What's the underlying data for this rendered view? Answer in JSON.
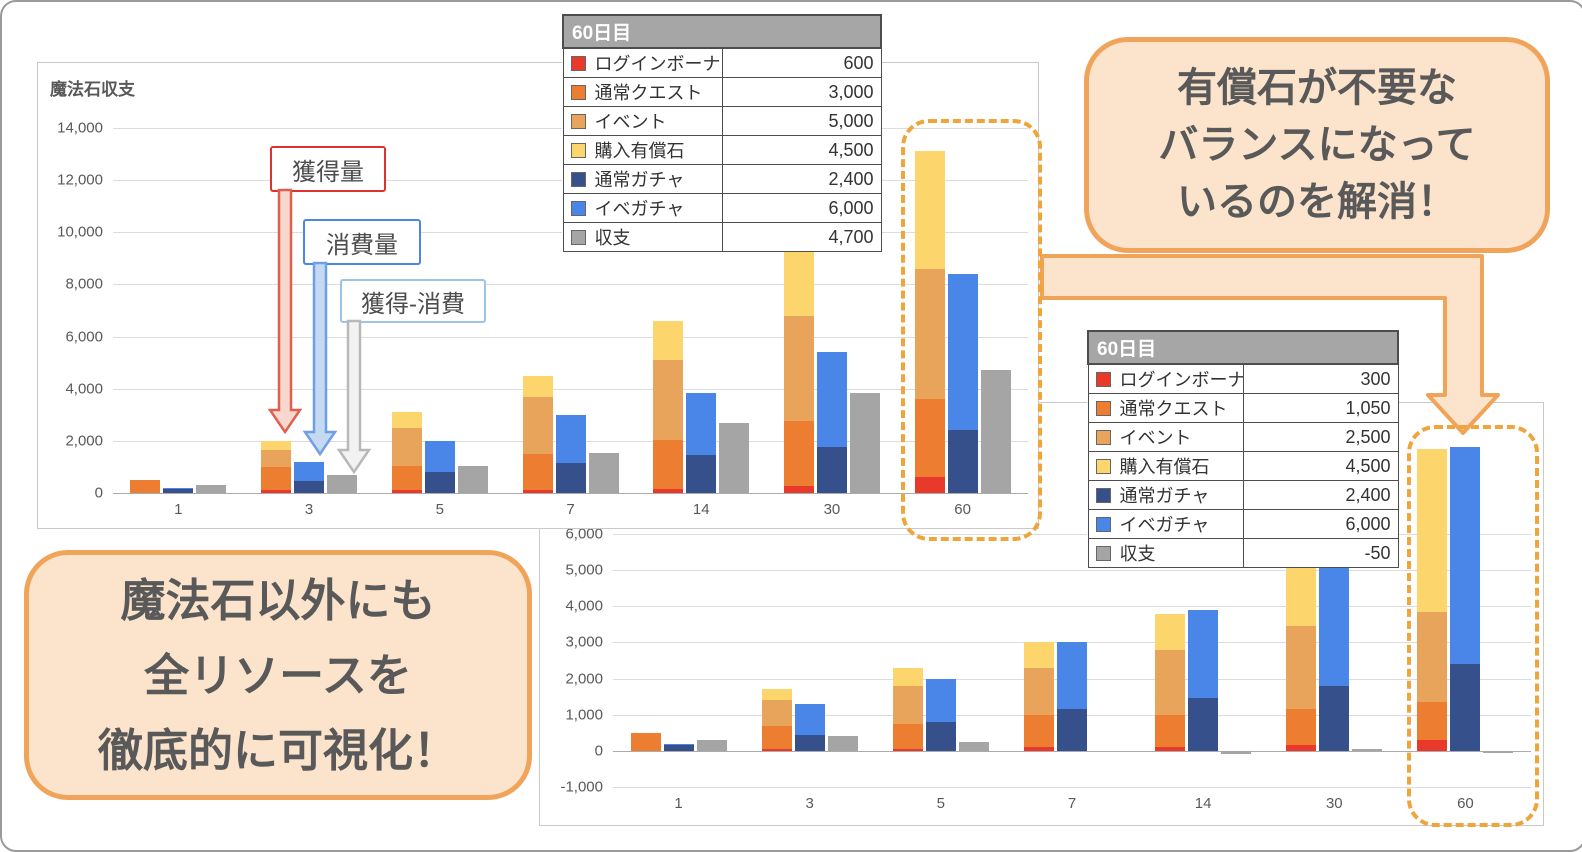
{
  "colors": {
    "login_bonus": "#e8392b",
    "normal_quest": "#ed7d31",
    "event": "#e9a45c",
    "paid_stone": "#fcd56c",
    "normal_gacha": "#36508c",
    "event_gacha": "#4a86e8",
    "balance": "#a5a5a5",
    "bubble_bg": "#fbe3cc",
    "bubble_border": "#f0a45a",
    "dash_border": "#f0a43c",
    "annotation_red": "#e03131",
    "annotation_blue": "#4a86e8",
    "annotation_lightblue": "#9dc3e6",
    "legend_header_bg": "#a6a6a6"
  },
  "legend1": {
    "header": "60日目",
    "rows": [
      {
        "label": "ログインボーナス",
        "value": "600",
        "color_key": "login_bonus"
      },
      {
        "label": "通常クエスト",
        "value": "3,000",
        "color_key": "normal_quest"
      },
      {
        "label": "イベント",
        "value": "5,000",
        "color_key": "event"
      },
      {
        "label": "購入有償石",
        "value": "4,500",
        "color_key": "paid_stone"
      },
      {
        "label": "通常ガチャ",
        "value": "2,400",
        "color_key": "normal_gacha"
      },
      {
        "label": "イベガチャ",
        "value": "6,000",
        "color_key": "event_gacha"
      },
      {
        "label": "収支",
        "value": "4,700",
        "color_key": "balance"
      }
    ]
  },
  "legend2": {
    "header": "60日目",
    "rows": [
      {
        "label": "ログインボーナス",
        "value": "300",
        "color_key": "login_bonus"
      },
      {
        "label": "通常クエスト",
        "value": "1,050",
        "color_key": "normal_quest"
      },
      {
        "label": "イベント",
        "value": "2,500",
        "color_key": "event"
      },
      {
        "label": "購入有償石",
        "value": "4,500",
        "color_key": "paid_stone"
      },
      {
        "label": "通常ガチャ",
        "value": "2,400",
        "color_key": "normal_gacha"
      },
      {
        "label": "イベガチャ",
        "value": "6,000",
        "color_key": "event_gacha"
      },
      {
        "label": "収支",
        "value": "-50",
        "color_key": "balance"
      }
    ]
  },
  "bubble1": {
    "lines": [
      "有償石が不要な",
      "バランスになって",
      "いるのを解消！"
    ]
  },
  "bubble2": {
    "lines": [
      "魔法石以外にも",
      "全リソースを",
      "徹底的に可視化！"
    ]
  },
  "annotations": [
    {
      "text": "獲得量"
    },
    {
      "text": "消費量"
    },
    {
      "text": "獲得-消費"
    }
  ],
  "chart_data": [
    {
      "type": "bar",
      "subtype": "grouped-stacked",
      "title": "魔法石収支",
      "categories": [
        "1",
        "3",
        "5",
        "7",
        "14",
        "30",
        "60"
      ],
      "xlabel": "",
      "ylabel": "",
      "ylim": [
        0,
        14000
      ],
      "ytick_step": 2000,
      "grid": true,
      "legend_position": "separate-table",
      "groups": [
        {
          "name": "獲得量",
          "series": [
            {
              "name": "ログインボーナス",
              "color_key": "login_bonus",
              "values": [
                0,
                100,
                100,
                100,
                150,
                250,
                600
              ]
            },
            {
              "name": "通常クエスト",
              "color_key": "normal_quest",
              "values": [
                500,
                900,
                950,
                1400,
                1900,
                2500,
                3000
              ]
            },
            {
              "name": "イベント",
              "color_key": "event",
              "values": [
                0,
                650,
                1450,
                2200,
                3050,
                4050,
                5000
              ]
            },
            {
              "name": "購入有償石",
              "color_key": "paid_stone",
              "values": [
                0,
                350,
                600,
                800,
                1500,
                2500,
                4500
              ]
            }
          ]
        },
        {
          "name": "消費量",
          "series": [
            {
              "name": "通常ガチャ",
              "color_key": "normal_gacha",
              "values": [
                150,
                450,
                800,
                1150,
                1450,
                1750,
                2400
              ]
            },
            {
              "name": "イベガチャ",
              "color_key": "event_gacha",
              "values": [
                50,
                750,
                1200,
                1850,
                2400,
                3650,
                6000
              ]
            }
          ]
        },
        {
          "name": "獲得-消費",
          "series": [
            {
              "name": "収支",
              "color_key": "balance",
              "values": [
                300,
                700,
                1050,
                1550,
                2700,
                3850,
                4700
              ]
            }
          ]
        }
      ]
    },
    {
      "type": "bar",
      "subtype": "grouped-stacked",
      "categories": [
        "1",
        "3",
        "5",
        "7",
        "14",
        "30",
        "60"
      ],
      "xlabel": "",
      "ylabel": "",
      "ylim": [
        -1000,
        6000
      ],
      "ytick_step": 1000,
      "grid": true,
      "legend_position": "separate-table",
      "groups": [
        {
          "name": "獲得量",
          "series": [
            {
              "name": "ログインボーナス",
              "color_key": "login_bonus",
              "values": [
                0,
                50,
                50,
                100,
                100,
                150,
                300
              ]
            },
            {
              "name": "通常クエスト",
              "color_key": "normal_quest",
              "values": [
                500,
                650,
                700,
                900,
                900,
                1000,
                1050
              ]
            },
            {
              "name": "イベント",
              "color_key": "event",
              "values": [
                0,
                700,
                1050,
                1300,
                1800,
                2300,
                2500
              ]
            },
            {
              "name": "購入有償石",
              "color_key": "paid_stone",
              "values": [
                0,
                300,
                500,
                700,
                1000,
                2000,
                4500
              ]
            }
          ]
        },
        {
          "name": "消費量",
          "series": [
            {
              "name": "通常ガチャ",
              "color_key": "normal_gacha",
              "values": [
                150,
                450,
                800,
                1150,
                1450,
                1800,
                2400
              ]
            },
            {
              "name": "イベガチャ",
              "color_key": "event_gacha",
              "values": [
                50,
                850,
                1200,
                1850,
                2450,
                3550,
                6000
              ]
            }
          ]
        },
        {
          "name": "獲得-消費",
          "series": [
            {
              "name": "収支",
              "color_key": "balance",
              "values": [
                300,
                400,
                250,
                0,
                -100,
                50,
                -50
              ]
            }
          ]
        }
      ]
    }
  ]
}
